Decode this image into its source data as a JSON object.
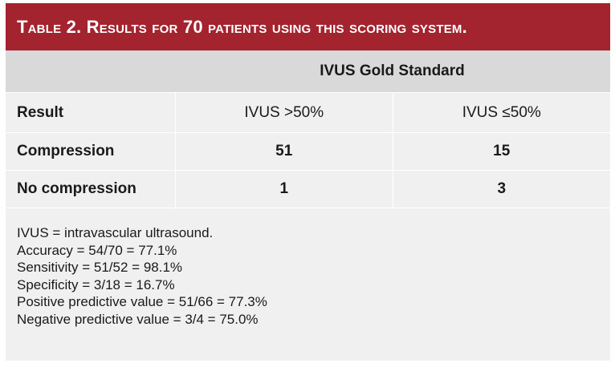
{
  "title": "Table 2. Results for 70 patients using this scoring system.",
  "group_header": "IVUS Gold Standard",
  "columns": [
    "Result",
    "IVUS >50%",
    "IVUS ≤50%"
  ],
  "rows": [
    {
      "label": "Compression",
      "values": [
        "51",
        "15"
      ]
    },
    {
      "label": "No compression",
      "values": [
        "1",
        "3"
      ]
    }
  ],
  "notes": [
    "IVUS = intravascular ultrasound.",
    "Accuracy = 54/70 = 77.1%",
    "Sensitivity = 51/52 = 98.1%",
    "Specificity = 3/18 = 16.7%",
    "Positive predictive value = 51/66 = 77.3%",
    "Negative predictive value = 3/4 = 75.0%"
  ],
  "colors": {
    "title_bg": "#a3232f",
    "header_bg": "#d9d9d9",
    "body_bg": "#f0f0f0"
  }
}
